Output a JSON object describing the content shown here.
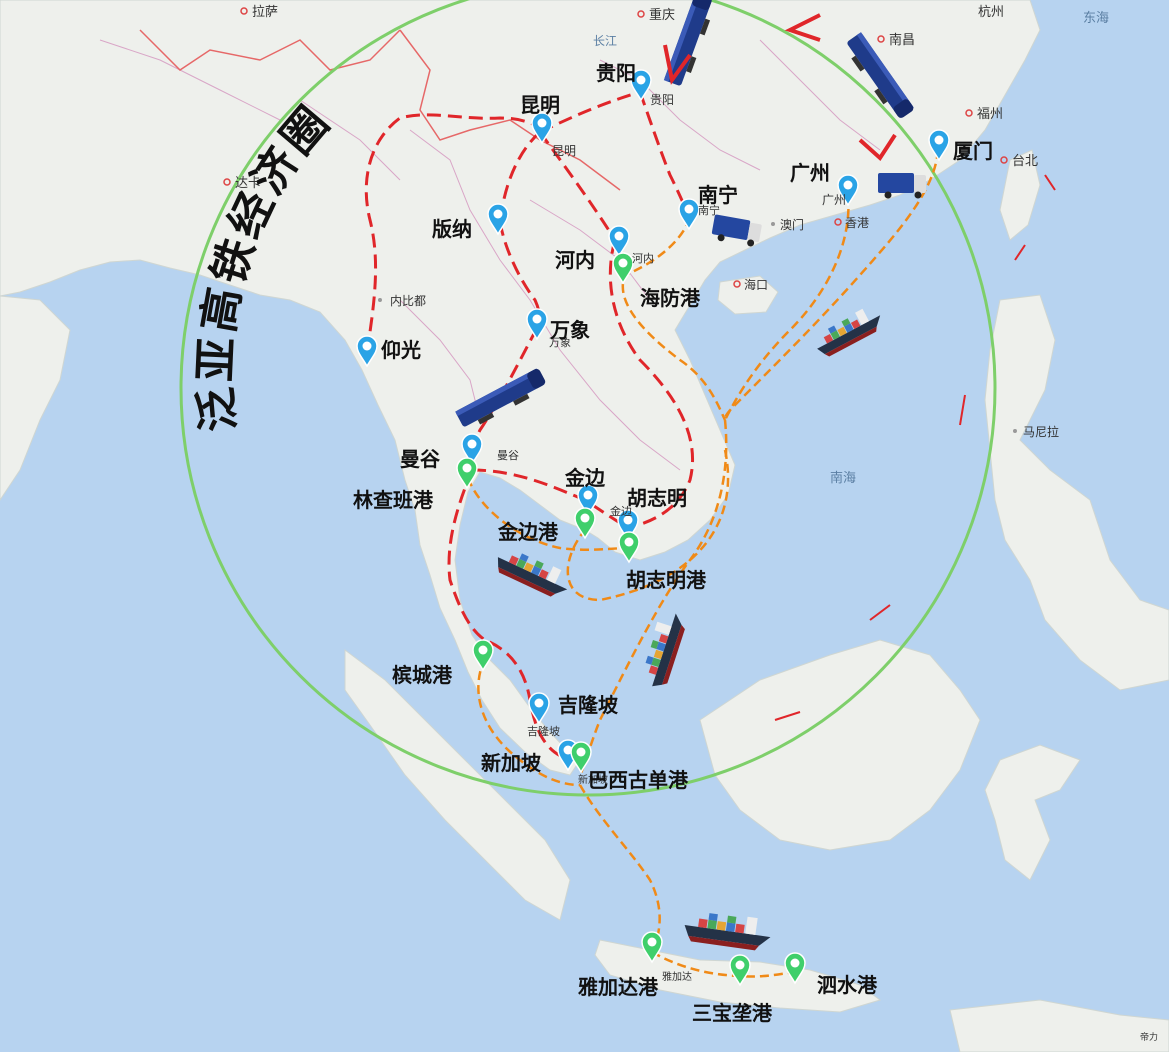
{
  "title": "泛亚高铁经济圈",
  "colors": {
    "sea": "#b7d3f0",
    "land": "#eef0ec",
    "rail": "#e0262a",
    "sea_route": "#f08a17",
    "circle": "#7ecf6a",
    "city_pin": "#2aa3e6",
    "port_pin": "#3fcf6b"
  },
  "cities": [
    {
      "id": "guiyang",
      "name": "贵阳",
      "base": "贵阳"
    },
    {
      "id": "kunming",
      "name": "昆明",
      "base": "昆明"
    },
    {
      "id": "nanning",
      "name": "南宁",
      "base": "南宁"
    },
    {
      "id": "guangzhou",
      "name": "广州",
      "base": "广州"
    },
    {
      "id": "xiamen",
      "name": "厦门"
    },
    {
      "id": "banna",
      "name": "版纳"
    },
    {
      "id": "hanoi",
      "name": "河内",
      "base": "河内"
    },
    {
      "id": "vientiane",
      "name": "万象",
      "base": "万象"
    },
    {
      "id": "yangon",
      "name": "仰光"
    },
    {
      "id": "bangkok",
      "name": "曼谷",
      "base": "曼谷"
    },
    {
      "id": "phnompenh",
      "name": "金边",
      "base": "金边"
    },
    {
      "id": "hcmc",
      "name": "胡志明"
    },
    {
      "id": "kl",
      "name": "吉隆坡",
      "base": "吉隆坡"
    },
    {
      "id": "singapore",
      "name": "新加坡",
      "base": "新加坡"
    }
  ],
  "ports": [
    {
      "id": "haiphong",
      "name": "海防港"
    },
    {
      "id": "laemchabang",
      "name": "林查班港"
    },
    {
      "id": "kompong",
      "name": "金边港"
    },
    {
      "id": "hcmcport",
      "name": "胡志明港"
    },
    {
      "id": "penang",
      "name": "槟城港"
    },
    {
      "id": "pasir",
      "name": "巴西古单港"
    },
    {
      "id": "jakarta",
      "name": "雅加达港"
    },
    {
      "id": "semarang",
      "name": "三宝垄港"
    },
    {
      "id": "surabaya",
      "name": "泗水港"
    }
  ],
  "base_labels": [
    {
      "id": "lasa",
      "text": "拉萨"
    },
    {
      "id": "chongqing",
      "text": "重庆"
    },
    {
      "id": "nanchang",
      "text": "南昌"
    },
    {
      "id": "hangzhou",
      "text": "杭州"
    },
    {
      "id": "fuzhou",
      "text": "福州"
    },
    {
      "id": "taibei",
      "text": "台北"
    },
    {
      "id": "dhaka",
      "text": "达卡"
    },
    {
      "id": "naypyidaw",
      "text": "内比都"
    },
    {
      "id": "macau",
      "text": "澳门"
    },
    {
      "id": "hongkong",
      "text": "香港"
    },
    {
      "id": "haikou",
      "text": "海口"
    },
    {
      "id": "manila",
      "text": "马尼拉"
    },
    {
      "id": "jakarta_city",
      "text": "雅加达"
    },
    {
      "id": "yangtze",
      "text": "长江"
    },
    {
      "id": "east_sea",
      "text": "东海"
    },
    {
      "id": "south_sea",
      "text": "南海"
    },
    {
      "id": "copyright",
      "text": "帝力"
    }
  ]
}
